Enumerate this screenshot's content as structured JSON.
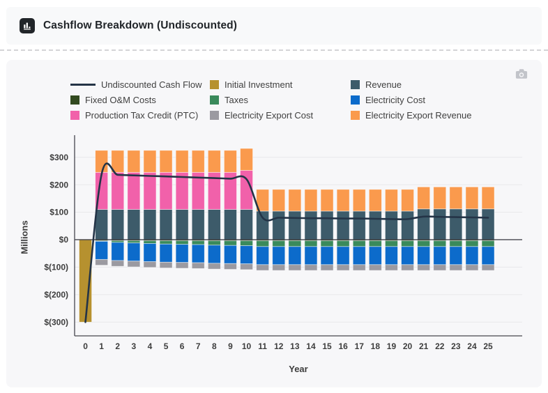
{
  "header": {
    "title": "Cashflow Breakdown (Undiscounted)",
    "icon": "bar-chart-icon"
  },
  "toolbar": {
    "camera_icon": "download-plot-camera-icon"
  },
  "chart_data": {
    "type": "bar",
    "stacked": true,
    "line_overlay": true,
    "title": "Cashflow Breakdown (Undiscounted)",
    "xlabel": "Year",
    "ylabel": "Millions",
    "ylim": [
      -350,
      365
    ],
    "grid": true,
    "legend_position": "top",
    "x": [
      0,
      1,
      2,
      3,
      4,
      5,
      6,
      7,
      8,
      9,
      10,
      11,
      12,
      13,
      14,
      15,
      16,
      17,
      18,
      19,
      20,
      21,
      22,
      23,
      24,
      25
    ],
    "series": [
      {
        "name": "Revenue",
        "color": "#3d5b6a",
        "values": [
          0,
          110,
          110,
          110,
          110,
          110,
          110,
          110,
          110,
          110,
          110,
          104,
          104,
          104,
          104,
          104,
          104,
          104,
          104,
          104,
          104,
          112,
          112,
          112,
          112,
          112
        ]
      },
      {
        "name": "Production Tax Credit (PTC)",
        "color": "#f161aa",
        "values": [
          0,
          135,
          135,
          135,
          135,
          135,
          135,
          135,
          135,
          135,
          142,
          0,
          0,
          0,
          0,
          0,
          0,
          0,
          0,
          0,
          0,
          0,
          0,
          0,
          0,
          0
        ]
      },
      {
        "name": "Electricity Export Revenue",
        "color": "#fa9a4d",
        "values": [
          0,
          80,
          80,
          80,
          80,
          80,
          80,
          80,
          80,
          80,
          80,
          79,
          79,
          79,
          79,
          79,
          79,
          79,
          79,
          79,
          79,
          80,
          80,
          80,
          80,
          80
        ]
      },
      {
        "name": "Initial Investment",
        "color": "#b6912f",
        "values": [
          -300,
          0,
          0,
          0,
          0,
          0,
          0,
          0,
          0,
          0,
          0,
          0,
          0,
          0,
          0,
          0,
          0,
          0,
          0,
          0,
          0,
          0,
          0,
          0,
          0,
          0
        ]
      },
      {
        "name": "Fixed O&M Costs",
        "color": "#324a20",
        "values": [
          0,
          -4,
          -4,
          -4,
          -4,
          -4,
          -4,
          -4,
          -4,
          -4,
          -4,
          -4,
          -4,
          -4,
          -4,
          -4,
          -4,
          -4,
          -4,
          -4,
          -4,
          -4,
          -4,
          -4,
          -4,
          -4
        ]
      },
      {
        "name": "Taxes",
        "color": "#3a8a5b",
        "values": [
          0,
          -2,
          -6,
          -8,
          -10,
          -12,
          -13,
          -14,
          -16,
          -17,
          -18,
          -21,
          -21,
          -21,
          -21,
          -21,
          -21,
          -21,
          -21,
          -21,
          -21,
          -21,
          -21,
          -21,
          -21,
          -21
        ]
      },
      {
        "name": "Electricity Cost",
        "color": "#0c6bcb",
        "values": [
          0,
          -66,
          -66,
          -66,
          -66,
          -66,
          -66,
          -66,
          -66,
          -66,
          -66,
          -66,
          -66,
          -66,
          -66,
          -66,
          -66,
          -66,
          -66,
          -66,
          -66,
          -66,
          -66,
          -66,
          -66,
          -66
        ]
      },
      {
        "name": "Electricity Export Cost",
        "color": "#9b9aa1",
        "values": [
          0,
          -21,
          -21,
          -21,
          -21,
          -21,
          -21,
          -21,
          -21,
          -21,
          -21,
          -21,
          -21,
          -21,
          -21,
          -21,
          -21,
          -21,
          -21,
          -21,
          -21,
          -21,
          -21,
          -21,
          -21,
          -21
        ]
      }
    ],
    "line_series": {
      "name": "Undiscounted Cash Flow",
      "color": "#243447",
      "values": [
        -300,
        238,
        236,
        234,
        232,
        230,
        228,
        226,
        224,
        222,
        220,
        80,
        80,
        79,
        78,
        78,
        77,
        77,
        76,
        75,
        75,
        84,
        83,
        82,
        81,
        80
      ]
    },
    "yticks": [
      {
        "value": 300,
        "label": "$300"
      },
      {
        "value": 200,
        "label": "$200"
      },
      {
        "value": 100,
        "label": "$100"
      },
      {
        "value": 0,
        "label": "$0"
      },
      {
        "value": -100,
        "label": "$(100)"
      },
      {
        "value": -200,
        "label": "$(200)"
      },
      {
        "value": -300,
        "label": "$(300)"
      }
    ],
    "legend": [
      {
        "label": "Undiscounted Cash Flow",
        "swatch": "line",
        "color": "#243447"
      },
      {
        "label": "Initial Investment",
        "swatch": "square",
        "color": "#b6912f"
      },
      {
        "label": "Revenue",
        "swatch": "square",
        "color": "#3d5b6a"
      },
      {
        "label": "Fixed O&M Costs",
        "swatch": "square",
        "color": "#324a20"
      },
      {
        "label": "Taxes",
        "swatch": "square",
        "color": "#3a8a5b"
      },
      {
        "label": "Electricity Cost",
        "swatch": "square",
        "color": "#0c6bcb"
      },
      {
        "label": "Production Tax Credit (PTC)",
        "swatch": "square",
        "color": "#f161aa"
      },
      {
        "label": "Electricity Export Cost",
        "swatch": "square",
        "color": "#9b9aa1"
      },
      {
        "label": "Electricity Export Revenue",
        "swatch": "square",
        "color": "#fa9a4d"
      }
    ]
  }
}
